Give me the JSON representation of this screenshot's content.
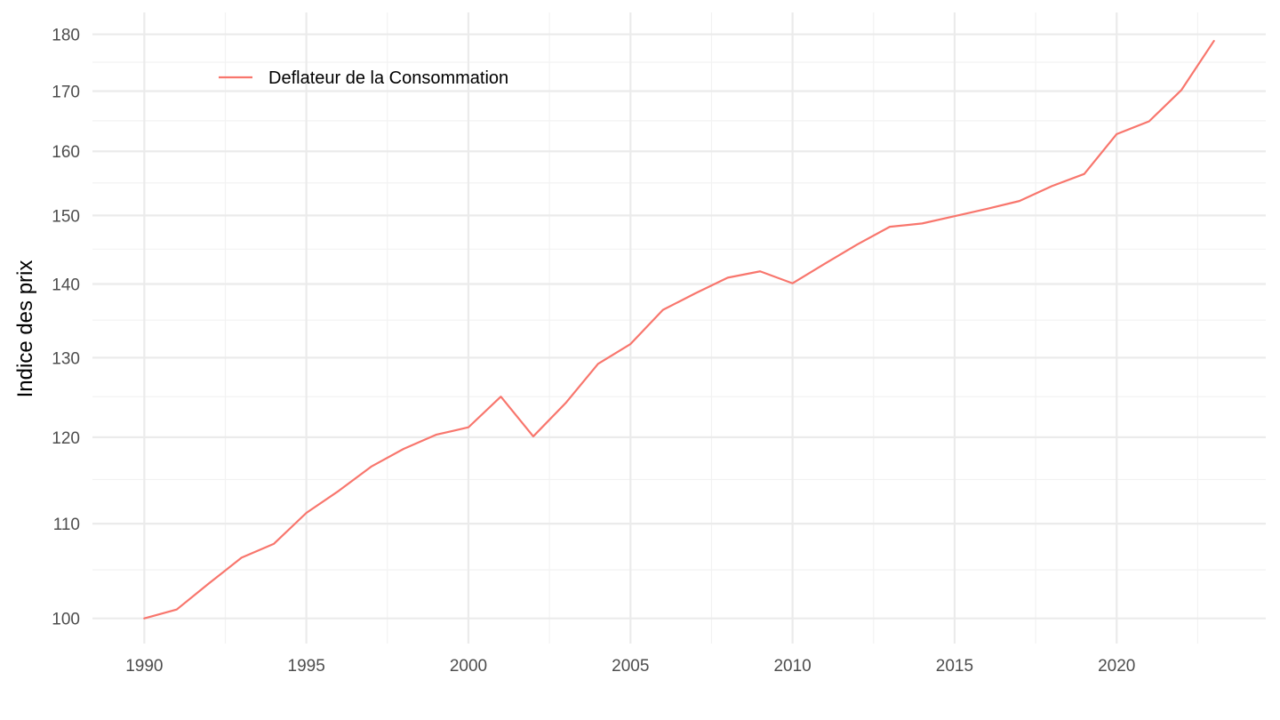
{
  "chart_data": {
    "type": "line",
    "title": "",
    "xlabel": "",
    "ylabel": "Indice des prix",
    "y_scale": "log",
    "xlim": [
      1988.4,
      2024.6
    ],
    "ylim": [
      97.5,
      184
    ],
    "x_ticks": [
      1990,
      1995,
      2000,
      2005,
      2010,
      2015,
      2020
    ],
    "x_tick_labels": [
      "1990",
      "1995",
      "2000",
      "2005",
      "2010",
      "2015",
      "2020"
    ],
    "y_ticks": [
      100,
      110,
      120,
      130,
      140,
      150,
      160,
      170,
      180
    ],
    "y_tick_labels": [
      "100",
      "110",
      "120",
      "130",
      "140",
      "150",
      "160",
      "170",
      "180"
    ],
    "grid": true,
    "legend_position": "top-left (inside plot)",
    "series": [
      {
        "name": "Deflateur de la Consommation",
        "color": "#F8766D",
        "x": [
          1990,
          1991,
          1992,
          1993,
          1994,
          1995,
          1996,
          1997,
          1998,
          1999,
          2000,
          2001,
          2002,
          2003,
          2004,
          2005,
          2006,
          2007,
          2008,
          2009,
          2010,
          2011,
          2012,
          2013,
          2014,
          2015,
          2016,
          2017,
          2018,
          2019,
          2020,
          2021,
          2022,
          2023
        ],
        "y": [
          100.0,
          100.9,
          103.6,
          106.3,
          107.8,
          111.2,
          113.7,
          116.5,
          118.6,
          120.3,
          121.2,
          125.0,
          120.1,
          124.2,
          129.2,
          131.8,
          136.4,
          138.7,
          140.9,
          141.8,
          140.1,
          142.9,
          145.7,
          148.3,
          148.8,
          149.9,
          151.0,
          152.2,
          154.5,
          156.4,
          162.8,
          164.9,
          170.2,
          178.8
        ]
      }
    ]
  }
}
